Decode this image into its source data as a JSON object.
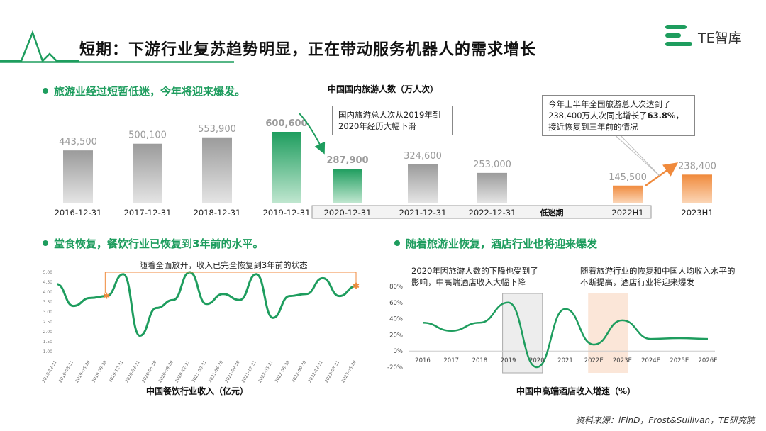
{
  "header": {
    "title": "短期：下游行业复苏趋势明显，正在带动服务机器人的需求增长",
    "logo_text": "TE智库"
  },
  "sections": {
    "tourism": {
      "heading": "旅游业经过短暂低迷，今年将迎来爆发。"
    },
    "catering": {
      "heading": "堂食恢复，餐饮行业已恢复到3年前的水平。"
    },
    "hotel": {
      "heading": "随着旅游业恢复，酒店行业也将迎来爆发"
    }
  },
  "callouts": {
    "tourism_drop": "国内旅游总人次从2019年到2020年经历大幅下滑",
    "tourism_h1_pre": "今年上半年全国旅游总人次达到了238,400万人次同比增长了",
    "tourism_h1_pct": "63.8%",
    "tourism_h1_post": "，接近恢复到三年前的情况",
    "slump_label": "低迷期",
    "catering_note": "随着全面放开，收入已完全恢复到3年前的状态",
    "hotel_note1": "2020年因旅游人数的下降也受到了影响，中高端酒店收入大幅下降",
    "hotel_note2": "随着旅游行业的恢复和中国人均收入水平的不断提高，酒店行业将迎来爆发"
  },
  "source": "资料来源：iFinD，Frost&Sullivan，TE研究院",
  "colors": {
    "green": "#1e9d5e",
    "gray": "#bdbdbd",
    "orange": "#f08a3c"
  },
  "chart_data": [
    {
      "type": "bar",
      "title": "中国国内旅游人数（万人次）",
      "categories": [
        "2016-12-31",
        "2017-12-31",
        "2018-12-31",
        "2019-12-31",
        "2020-12-31",
        "2021-12-31",
        "2022-12-31",
        "2022H1",
        "2023H1"
      ],
      "values": [
        443500,
        500100,
        553900,
        600600,
        287900,
        324600,
        253000,
        145500,
        238400
      ],
      "value_labels": [
        "443,500",
        "500,100",
        "553,900",
        "600,600",
        "287,900",
        "324,600",
        "253,000",
        "145,500",
        "238,400"
      ],
      "bar_colors": [
        "gray",
        "gray",
        "gray",
        "green",
        "green",
        "gray",
        "gray",
        "orange",
        "orange"
      ]
    },
    {
      "type": "line",
      "title": "中国餐饮行业收入（亿元）",
      "y_ticks": [
        "5.00",
        "4.50",
        "4.00",
        "3.50",
        "3.00",
        "2.50",
        "2.00",
        "1.50",
        "1.00"
      ],
      "ylim": [
        1.0,
        5.0
      ],
      "x_labels": [
        "2018-12-31",
        "2019-03-31",
        "2019-06-30",
        "2019-09-30",
        "2019-12-31",
        "2020-03-31",
        "2020-06-30",
        "2020-09-30",
        "2020-12-31",
        "2021-03-31",
        "2021-06-30",
        "2021-09-30",
        "2021-12-31",
        "2022-03-31",
        "2022-06-30",
        "2022-09-30",
        "2022-12-31",
        "2023-03-31",
        "2023-06-30"
      ],
      "values": [
        4.4,
        3.3,
        3.7,
        3.8,
        4.9,
        1.8,
        3.2,
        3.6,
        5.0,
        3.4,
        3.9,
        3.6,
        4.9,
        2.7,
        3.8,
        3.9,
        4.7,
        3.8,
        4.3
      ]
    },
    {
      "type": "line",
      "title": "中国中高端酒店收入增速（%）",
      "x_labels": [
        "2016",
        "2017",
        "2018",
        "2019",
        "2020",
        "2021",
        "2022E",
        "2023E",
        "2024E",
        "2025E",
        "2026E"
      ],
      "y_ticks": [
        "80%",
        "60%",
        "40%",
        "20%",
        "0%",
        "-20%"
      ],
      "ylim": [
        -20,
        80
      ],
      "values": [
        35,
        25,
        35,
        60,
        -20,
        52,
        8,
        38,
        15,
        16,
        15
      ]
    }
  ]
}
